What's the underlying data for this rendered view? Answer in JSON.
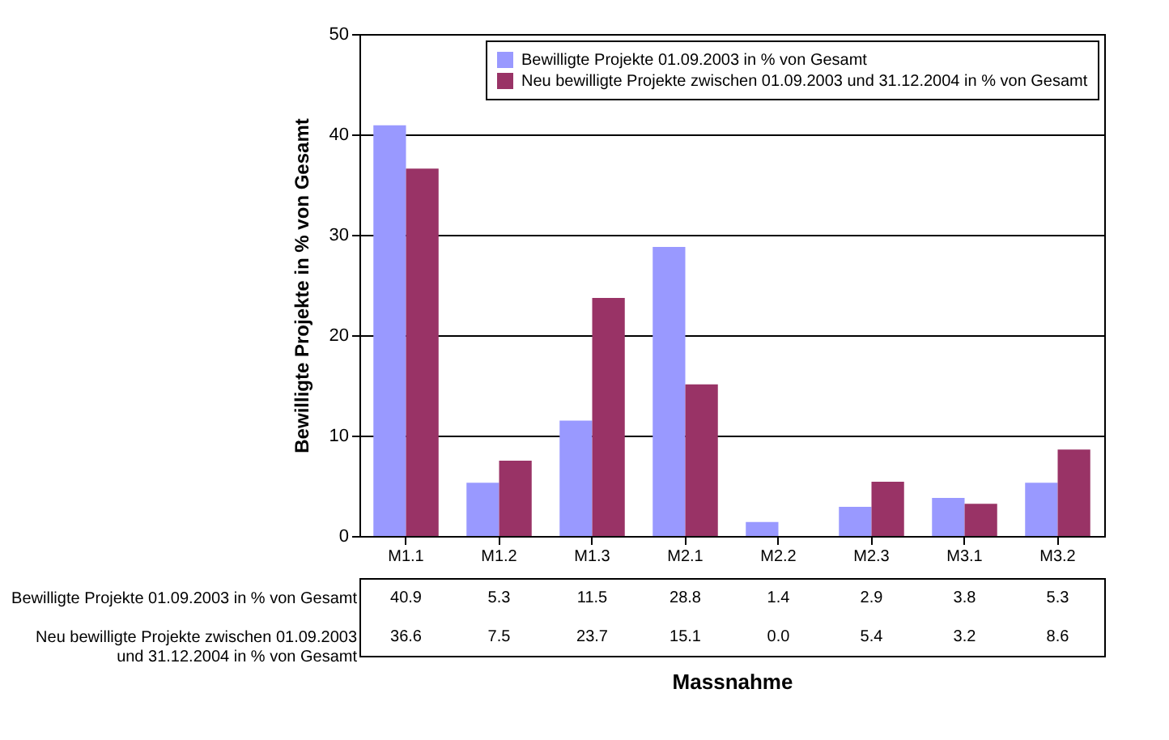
{
  "chart_data": {
    "type": "bar",
    "ylabel": "Bewilligte Projekte in % von Gesamt",
    "xlabel": "Massnahme",
    "categories": [
      "M1.1",
      "M1.2",
      "M1.3",
      "M2.1",
      "M2.2",
      "M2.3",
      "M3.1",
      "M3.2"
    ],
    "series": [
      {
        "name": "Bewilligte Projekte 01.09.2003 in % von Gesamt",
        "color": "#9999ff",
        "values": [
          40.9,
          5.3,
          11.5,
          28.8,
          1.4,
          2.9,
          3.8,
          5.3
        ],
        "value_labels": [
          "40.9",
          "5.3",
          "11.5",
          "28.8",
          "1.4",
          "2.9",
          "3.8",
          "5.3"
        ]
      },
      {
        "name": "Neu bewilligte Projekte zwischen 01.09.2003 und 31.12.2004 in % von Gesamt",
        "color": "#993366",
        "values": [
          36.6,
          7.5,
          23.7,
          15.1,
          0.0,
          5.4,
          3.2,
          8.6
        ],
        "value_labels": [
          "36.6",
          "7.5",
          "23.7",
          "15.1",
          "0.0",
          "5.4",
          "3.2",
          "8.6"
        ]
      }
    ],
    "ylim": [
      0,
      50
    ],
    "yticks": [
      0,
      10,
      20,
      30,
      40,
      50
    ],
    "grid": "y",
    "legend": "top right"
  }
}
